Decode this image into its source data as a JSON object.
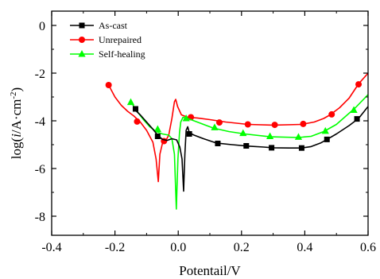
{
  "chart_data": {
    "type": "line",
    "title": "",
    "xlabel": "Potentail/V",
    "ylabel_parts": [
      "log(",
      "i",
      "/A·cm",
      "-2",
      ")"
    ],
    "xlim": [
      -0.4,
      0.6
    ],
    "ylim": [
      -8.8,
      0.6
    ],
    "xticks": [
      -0.4,
      -0.2,
      0.0,
      0.2,
      0.4,
      0.6
    ],
    "xtick_labels": [
      "-0.4",
      "-0.2",
      "0.0",
      "0.2",
      "0.4",
      "0.6"
    ],
    "yticks": [
      0,
      -2,
      -4,
      -6,
      -8
    ],
    "ytick_labels": [
      "0",
      "-2",
      "-4",
      "-6",
      "-8"
    ],
    "grid": false,
    "legend_position": "top-left",
    "series": [
      {
        "name": "As-cast",
        "color": "#000000",
        "marker": "square",
        "line": [
          [
            -0.14,
            -3.5
          ],
          [
            -0.12,
            -3.75
          ],
          [
            -0.1,
            -4.05
          ],
          [
            -0.08,
            -4.35
          ],
          [
            -0.065,
            -4.6
          ],
          [
            -0.05,
            -4.78
          ],
          [
            -0.035,
            -4.82
          ],
          [
            -0.02,
            -4.75
          ],
          [
            -0.005,
            -4.8
          ],
          [
            0.005,
            -5.1
          ],
          [
            0.012,
            -5.6
          ],
          [
            0.017,
            -6.95
          ],
          [
            0.021,
            -5.4
          ],
          [
            0.025,
            -4.4
          ],
          [
            0.03,
            -4.25
          ],
          [
            0.035,
            -4.5
          ],
          [
            0.05,
            -4.6
          ],
          [
            0.08,
            -4.75
          ],
          [
            0.12,
            -4.93
          ],
          [
            0.17,
            -5.0
          ],
          [
            0.22,
            -5.06
          ],
          [
            0.27,
            -5.1
          ],
          [
            0.3,
            -5.13
          ],
          [
            0.35,
            -5.14
          ],
          [
            0.39,
            -5.14
          ],
          [
            0.42,
            -5.08
          ],
          [
            0.45,
            -4.93
          ],
          [
            0.47,
            -4.78
          ],
          [
            0.5,
            -4.55
          ],
          [
            0.54,
            -4.2
          ],
          [
            0.57,
            -3.9
          ],
          [
            0.6,
            -3.4
          ]
        ],
        "markers": [
          [
            -0.135,
            -3.5
          ],
          [
            -0.065,
            -4.65
          ],
          [
            0.035,
            -4.55
          ],
          [
            0.125,
            -4.95
          ],
          [
            0.215,
            -5.05
          ],
          [
            0.295,
            -5.13
          ],
          [
            0.39,
            -5.14
          ],
          [
            0.47,
            -4.78
          ],
          [
            0.565,
            -3.92
          ]
        ]
      },
      {
        "name": "Unrepaired",
        "color": "#ff0000",
        "marker": "circle",
        "line": [
          [
            -0.22,
            -2.5
          ],
          [
            -0.2,
            -3.0
          ],
          [
            -0.18,
            -3.35
          ],
          [
            -0.16,
            -3.6
          ],
          [
            -0.14,
            -3.8
          ],
          [
            -0.12,
            -4.05
          ],
          [
            -0.1,
            -4.4
          ],
          [
            -0.08,
            -4.9
          ],
          [
            -0.07,
            -5.6
          ],
          [
            -0.063,
            -6.55
          ],
          [
            -0.058,
            -5.4
          ],
          [
            -0.05,
            -4.95
          ],
          [
            -0.04,
            -4.85
          ],
          [
            -0.03,
            -4.6
          ],
          [
            -0.02,
            -3.9
          ],
          [
            -0.012,
            -3.2
          ],
          [
            -0.008,
            -3.1
          ],
          [
            -0.002,
            -3.4
          ],
          [
            0.01,
            -3.75
          ],
          [
            0.03,
            -3.85
          ],
          [
            0.06,
            -3.88
          ],
          [
            0.1,
            -3.95
          ],
          [
            0.15,
            -4.05
          ],
          [
            0.22,
            -4.15
          ],
          [
            0.3,
            -4.18
          ],
          [
            0.39,
            -4.15
          ],
          [
            0.43,
            -4.05
          ],
          [
            0.46,
            -3.9
          ],
          [
            0.48,
            -3.75
          ],
          [
            0.51,
            -3.45
          ],
          [
            0.54,
            -3.05
          ],
          [
            0.57,
            -2.45
          ],
          [
            0.6,
            -2.0
          ]
        ],
        "markers": [
          [
            -0.22,
            -2.5
          ],
          [
            -0.13,
            -4.03
          ],
          [
            -0.045,
            -4.85
          ],
          [
            0.04,
            -3.85
          ],
          [
            0.13,
            -4.07
          ],
          [
            0.22,
            -4.15
          ],
          [
            0.305,
            -4.17
          ],
          [
            0.395,
            -4.13
          ],
          [
            0.485,
            -3.73
          ],
          [
            0.57,
            -2.47
          ]
        ]
      },
      {
        "name": "Self-healing",
        "color": "#00ff00",
        "marker": "triangle",
        "line": [
          [
            -0.15,
            -3.2
          ],
          [
            -0.13,
            -3.6
          ],
          [
            -0.11,
            -3.95
          ],
          [
            -0.09,
            -4.25
          ],
          [
            -0.07,
            -4.45
          ],
          [
            -0.05,
            -4.55
          ],
          [
            -0.03,
            -4.6
          ],
          [
            -0.02,
            -4.75
          ],
          [
            -0.012,
            -5.4
          ],
          [
            -0.006,
            -7.7
          ],
          [
            -0.001,
            -5.6
          ],
          [
            0.004,
            -4.5
          ],
          [
            0.008,
            -4.05
          ],
          [
            0.015,
            -3.85
          ],
          [
            0.03,
            -3.9
          ],
          [
            0.07,
            -4.1
          ],
          [
            0.11,
            -4.3
          ],
          [
            0.16,
            -4.45
          ],
          [
            0.21,
            -4.55
          ],
          [
            0.29,
            -4.67
          ],
          [
            0.38,
            -4.7
          ],
          [
            0.42,
            -4.65
          ],
          [
            0.46,
            -4.45
          ],
          [
            0.5,
            -4.15
          ],
          [
            0.53,
            -3.8
          ],
          [
            0.56,
            -3.45
          ],
          [
            0.6,
            -2.9
          ]
        ],
        "markers": [
          [
            -0.15,
            -3.22
          ],
          [
            -0.065,
            -4.35
          ],
          [
            0.025,
            -3.9
          ],
          [
            0.115,
            -4.28
          ],
          [
            0.205,
            -4.52
          ],
          [
            0.29,
            -4.65
          ],
          [
            0.38,
            -4.68
          ],
          [
            0.465,
            -4.43
          ],
          [
            0.555,
            -3.55
          ]
        ]
      }
    ]
  }
}
